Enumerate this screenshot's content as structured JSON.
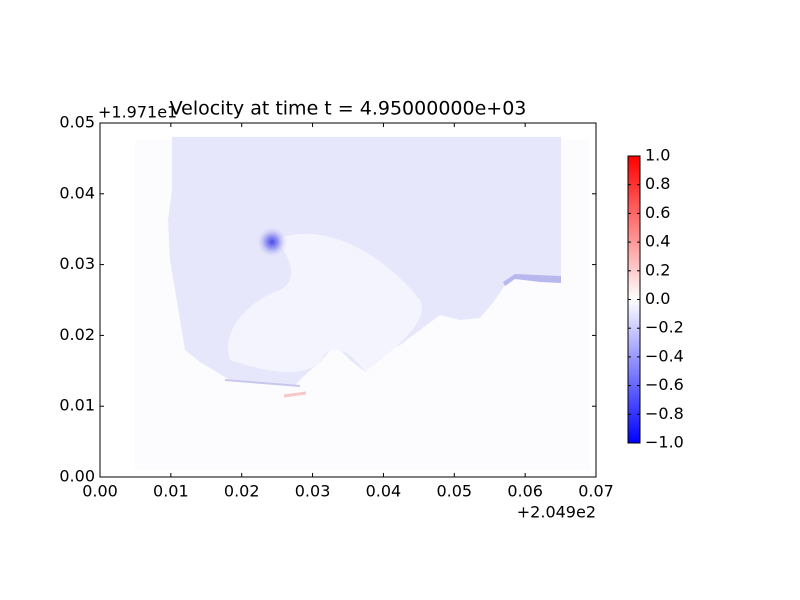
{
  "chart_data": {
    "type": "heatmap",
    "title": "Velocity at time t = 4.95000000e+03",
    "x_offset_label": "+2.049e2",
    "y_offset_label": "+1.971e1",
    "xlim": [
      0,
      0.07
    ],
    "xticks": [
      {
        "value": 0,
        "label": "0.00"
      },
      {
        "value": 0.01,
        "label": "0.01"
      },
      {
        "value": 0.02,
        "label": "0.02"
      },
      {
        "value": 0.03,
        "label": "0.03"
      },
      {
        "value": 0.04,
        "label": "0.04"
      },
      {
        "value": 0.05,
        "label": "0.05"
      },
      {
        "value": 0.06,
        "label": "0.06"
      },
      {
        "value": 0.07,
        "label": "0.07"
      }
    ],
    "ylim": [
      0,
      0.05
    ],
    "yticks": [
      {
        "value": 0,
        "label": "0.00"
      },
      {
        "value": 0.01,
        "label": "0.01"
      },
      {
        "value": 0.02,
        "label": "0.02"
      },
      {
        "value": 0.03,
        "label": "0.03"
      },
      {
        "value": 0.04,
        "label": "0.04"
      },
      {
        "value": 0.05,
        "label": "0.05"
      }
    ],
    "colorbar": {
      "colormap": "bwr",
      "lim": [
        -1,
        1
      ],
      "ticks": [
        {
          "value": -1,
          "label": "−1.0"
        },
        {
          "value": -0.8,
          "label": "−0.8"
        },
        {
          "value": -0.6,
          "label": "−0.6"
        },
        {
          "value": -0.4,
          "label": "−0.4"
        },
        {
          "value": -0.2,
          "label": "−0.2"
        },
        {
          "value": 0,
          "label": "0.0"
        },
        {
          "value": 0.2,
          "label": "0.2"
        },
        {
          "value": 0.4,
          "label": "0.4"
        },
        {
          "value": 0.6,
          "label": "0.6"
        },
        {
          "value": 0.8,
          "label": "0.8"
        },
        {
          "value": 1,
          "label": "1.0"
        }
      ]
    }
  }
}
